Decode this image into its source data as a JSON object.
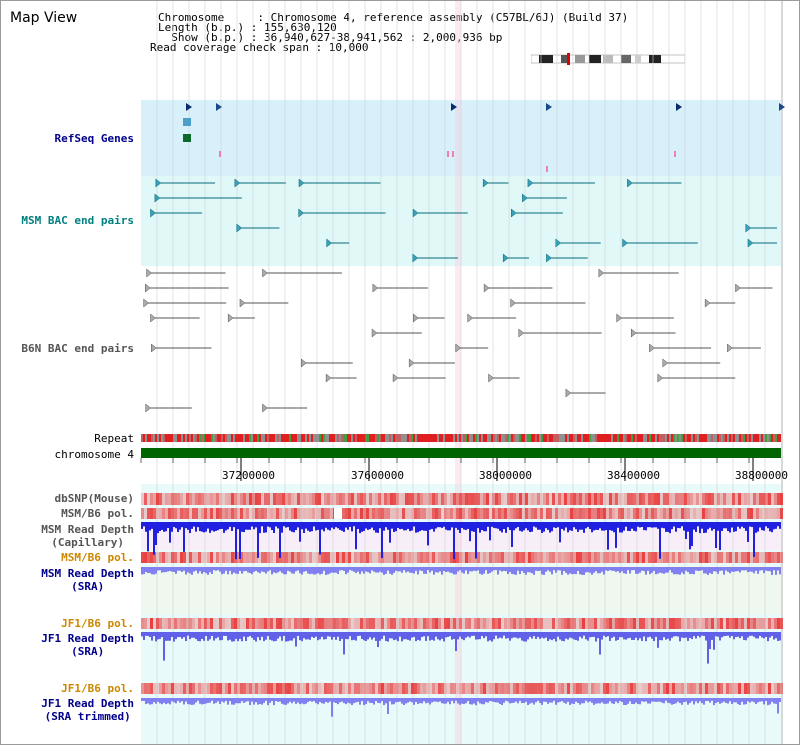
{
  "map_view": {
    "title": "Map View",
    "info_lines": [
      "Chromosome     : Chromosome 4, reference assembly (C57BL/6J) (Build 37)",
      "Length (b.p.) : 155,630,120",
      "  Show (b.p.) : 36,940,627-38,941,562 : 2,000,936 bp",
      "Read coverage check span : 10,000"
    ]
  },
  "axis": {
    "ticks": [
      "37200000",
      "37600000",
      "38000000",
      "38400000",
      "38800000"
    ]
  },
  "tracks": [
    {
      "key": "refseq",
      "label": [
        "RefSeq Genes"
      ],
      "color": "#00008b"
    },
    {
      "key": "msm_bac",
      "label": [
        "MSM BAC end pairs"
      ],
      "color": "#008080"
    },
    {
      "key": "b6n_bac",
      "label": [
        "B6N BAC end pairs"
      ],
      "color": "#555555"
    },
    {
      "key": "repeat",
      "label": [
        "Repeat"
      ],
      "color": "#000000"
    },
    {
      "key": "chromosome",
      "label": [
        "chromosome 4"
      ],
      "color": "#000000"
    },
    {
      "key": "dbsnp",
      "label": [
        "dbSNP(Mouse)"
      ],
      "color": "#555555"
    },
    {
      "key": "msm_b6_pol_cap",
      "label": [
        "MSM/B6 pol."
      ],
      "color": "#555555"
    },
    {
      "key": "msm_depth_cap",
      "label": [
        "MSM Read Depth",
        "(Capillary)"
      ],
      "color": "#555555"
    },
    {
      "key": "msm_b6_pol_sra",
      "label": [
        "MSM/B6 pol."
      ],
      "color": "#cc8800"
    },
    {
      "key": "msm_depth_sra",
      "label": [
        "MSM Read Depth",
        "(SRA)"
      ],
      "color": "#00008b"
    },
    {
      "key": "jf1_b6_pol",
      "label": [
        "JF1/B6 pol."
      ],
      "color": "#cc8800"
    },
    {
      "key": "jf1_depth",
      "label": [
        "JF1 Read Depth",
        "(SRA)"
      ],
      "color": "#00008b"
    },
    {
      "key": "jf1_b6_pol_trim",
      "label": [
        "JF1/B6 pol."
      ],
      "color": "#cc8800"
    },
    {
      "key": "jf1_depth_trim",
      "label": [
        "JF1 Read Depth",
        "(SRA trimmed)"
      ],
      "color": "#00008b"
    }
  ],
  "colors": {
    "refseq_bg": "#d8f0fa",
    "msm_bg": "#e0f8f8",
    "b6n_bg": "#ffffff",
    "gridline": "#d0d0d0",
    "chromosome_bar": "#006400",
    "depth_blue": "#2020e0",
    "depth_light": "#8080f0",
    "pol_red": "#e84040",
    "snp_pink": "#f08080"
  }
}
